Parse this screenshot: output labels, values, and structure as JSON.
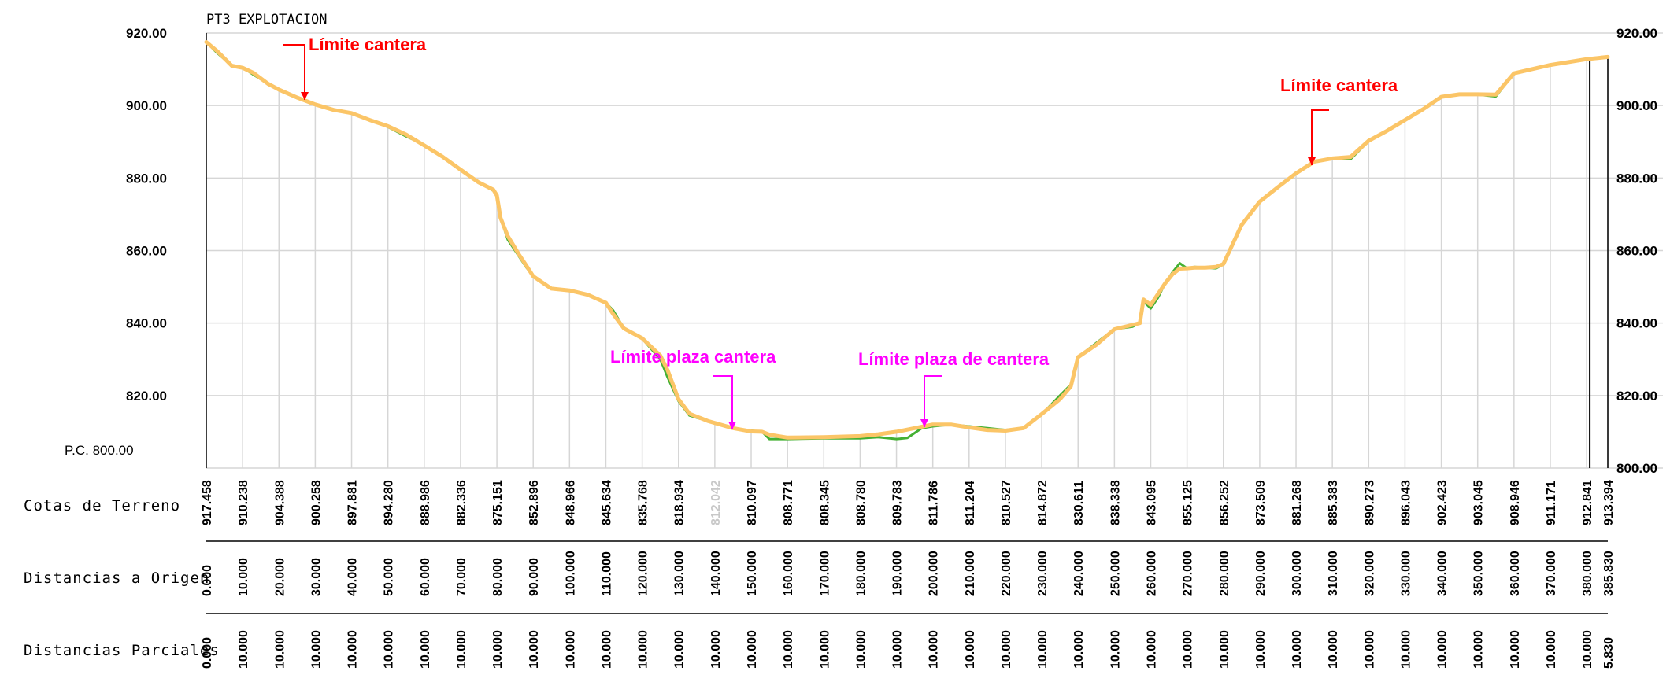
{
  "chart_data": {
    "type": "line",
    "title": "PT3 EXPLOTACION",
    "reference_label": "P.C. 800.00",
    "row_labels": {
      "cotas": "Cotas de Terreno",
      "origen": "Distancias a Origen",
      "parciales": "Distancias Parciales"
    },
    "y_ticks": [
      "920.00",
      "900.00",
      "880.00",
      "860.00",
      "840.00",
      "820.00"
    ],
    "y_ticks_right": [
      "920.00",
      "900.00",
      "880.00",
      "860.00",
      "840.00",
      "820.00",
      "800.00"
    ],
    "ylim": [
      800,
      920
    ],
    "xlim": [
      0,
      385.83
    ],
    "stations": [
      0,
      10,
      20,
      30,
      40,
      50,
      60,
      70,
      80,
      90,
      100,
      110,
      120,
      130,
      140,
      150,
      160,
      170,
      180,
      190,
      200,
      210,
      220,
      230,
      240,
      250,
      260,
      270,
      280,
      290,
      300,
      310,
      320,
      330,
      340,
      350,
      360,
      370,
      380,
      385.83
    ],
    "cotas_labels": [
      "917.458",
      "910.238",
      "904.388",
      "900.258",
      "897.881",
      "894.280",
      "888.986",
      "882.336",
      "875.151",
      "852.896",
      "848.966",
      "845.634",
      "835.768",
      "818.934",
      "812.042",
      "810.097",
      "808.771",
      "808.345",
      "808.780",
      "809.783",
      "811.786",
      "811.204",
      "810.527",
      "814.872",
      "830.611",
      "838.338",
      "843.095",
      "855.125",
      "856.252",
      "873.509",
      "881.268",
      "885.383",
      "890.273",
      "896.043",
      "902.423",
      "903.045",
      "908.946",
      "911.171",
      "912.841",
      "913.394"
    ],
    "origen_labels": [
      "0.000",
      "10.000",
      "20.000",
      "30.000",
      "40.000",
      "50.000",
      "60.000",
      "70.000",
      "80.000",
      "90.000",
      "100.000",
      "110.000",
      "120.000",
      "130.000",
      "140.000",
      "150.000",
      "160.000",
      "170.000",
      "180.000",
      "190.000",
      "200.000",
      "210.000",
      "220.000",
      "230.000",
      "240.000",
      "250.000",
      "260.000",
      "270.000",
      "280.000",
      "290.000",
      "300.000",
      "310.000",
      "320.000",
      "330.000",
      "340.000",
      "350.000",
      "360.000",
      "370.000",
      "380.000",
      "385.830"
    ],
    "parciales_labels": [
      "0.000",
      "10.000",
      "10.000",
      "10.000",
      "10.000",
      "10.000",
      "10.000",
      "10.000",
      "10.000",
      "10.000",
      "10.000",
      "10.000",
      "10.000",
      "10.000",
      "10.000",
      "10.000",
      "10.000",
      "10.000",
      "10.000",
      "10.000",
      "10.000",
      "10.000",
      "10.000",
      "10.000",
      "10.000",
      "10.000",
      "10.000",
      "10.000",
      "10.000",
      "10.000",
      "10.000",
      "10.000",
      "10.000",
      "10.000",
      "10.000",
      "10.000",
      "10.000",
      "10.000",
      "10.000",
      "5.830"
    ],
    "series": [
      {
        "color": "#44b033",
        "x": [
          0,
          3,
          7,
          10,
          13,
          17,
          20,
          25,
          30,
          35,
          40,
          45,
          50,
          55,
          60,
          65,
          70,
          75,
          79,
          80,
          81,
          83,
          86,
          88,
          90,
          95,
          100,
          105,
          110,
          112,
          115,
          120,
          125,
          127,
          130,
          133,
          138,
          145,
          150,
          153,
          155,
          160,
          170,
          180,
          185,
          190,
          193,
          197,
          200,
          205,
          210,
          215,
          220,
          225,
          230,
          235,
          238,
          240,
          245,
          250,
          255,
          257,
          258,
          260,
          262,
          264,
          266,
          268,
          270,
          272,
          275,
          278,
          280,
          285,
          290,
          295,
          300,
          305,
          310,
          315,
          320,
          325,
          330,
          335,
          340,
          345,
          350,
          355,
          360,
          370,
          380,
          385.83
        ],
        "y": [
          917.5,
          914.5,
          911,
          910.5,
          908.5,
          906,
          904.2,
          902,
          900.2,
          898.8,
          897.9,
          896.1,
          894.1,
          891.5,
          889.2,
          885.9,
          882.3,
          878.8,
          876.5,
          875.1,
          869,
          863,
          858.5,
          855.5,
          852.9,
          849.5,
          849,
          847.8,
          845.6,
          843.5,
          838.5,
          835.7,
          830,
          825,
          818.5,
          814.5,
          813,
          811,
          810.3,
          810,
          808,
          808,
          808.2,
          808.2,
          808.5,
          808,
          808.3,
          811,
          811.5,
          812,
          811.5,
          811,
          810.5,
          811,
          814.8,
          820,
          823,
          830.6,
          834.5,
          838.3,
          839,
          840,
          846,
          844,
          847,
          851,
          854,
          856.5,
          855.1,
          855.5,
          855.3,
          855.1,
          856.2,
          867,
          873.5,
          877.5,
          881.2,
          884.5,
          885.4,
          885.2,
          890.2,
          893,
          896,
          899,
          902.4,
          903,
          903,
          902.5,
          908.9,
          911.1,
          912.8,
          913.4
        ]
      },
      {
        "color": "#fbc567",
        "x": [
          0,
          3,
          7,
          10,
          13,
          17,
          20,
          25,
          30,
          35,
          40,
          45,
          50,
          55,
          60,
          65,
          70,
          75,
          79,
          80,
          81,
          83,
          86,
          88,
          90,
          95,
          100,
          105,
          110,
          112,
          115,
          120,
          125,
          127,
          130,
          133,
          138,
          145,
          150,
          153,
          155,
          160,
          170,
          180,
          185,
          190,
          195,
          200,
          205,
          210,
          215,
          220,
          225,
          230,
          235,
          238,
          240,
          245,
          250,
          255,
          257,
          258,
          260,
          262,
          264,
          266,
          268,
          270,
          272,
          275,
          278,
          280,
          285,
          290,
          295,
          300,
          305,
          310,
          315,
          320,
          325,
          330,
          335,
          340,
          345,
          350,
          355,
          360,
          370,
          380,
          385.83
        ],
        "y": [
          917.5,
          915,
          911,
          910.4,
          909,
          906,
          904.4,
          902.2,
          900.3,
          898.8,
          897.9,
          896,
          894.3,
          892,
          889,
          885.9,
          882.3,
          878.8,
          876.8,
          875.2,
          869,
          864,
          859,
          856,
          852.9,
          849.5,
          849,
          847.8,
          845.6,
          842.5,
          838.5,
          835.8,
          831,
          827,
          819,
          815,
          813,
          811,
          810.1,
          810,
          809.2,
          808.4,
          808.5,
          808.8,
          809.3,
          810,
          811,
          812,
          812,
          811.2,
          810.5,
          810.3,
          811,
          814.9,
          819,
          822.5,
          830.6,
          834,
          838.3,
          839.5,
          840,
          846.5,
          845,
          848,
          851,
          853.5,
          855,
          855.1,
          855.3,
          855.3,
          855.5,
          856.3,
          867,
          873.5,
          877.5,
          881.3,
          884.5,
          885.4,
          885.8,
          890.3,
          893,
          896,
          899,
          902.4,
          903.1,
          903.1,
          903,
          908.9,
          911.2,
          912.8,
          913.4
        ]
      }
    ],
    "annotations": [
      {
        "text": "Límite cantera",
        "color": "#ff0000",
        "x": 27
      },
      {
        "text": "Límite cantera",
        "color": "#ff0000",
        "x": 305
      },
      {
        "text": "Límite plaza cantera",
        "color": "#ff00ff",
        "x": 146
      },
      {
        "text": "Límite plaza de  cantera",
        "color": "#ff00ff",
        "x": 196.5
      }
    ]
  }
}
